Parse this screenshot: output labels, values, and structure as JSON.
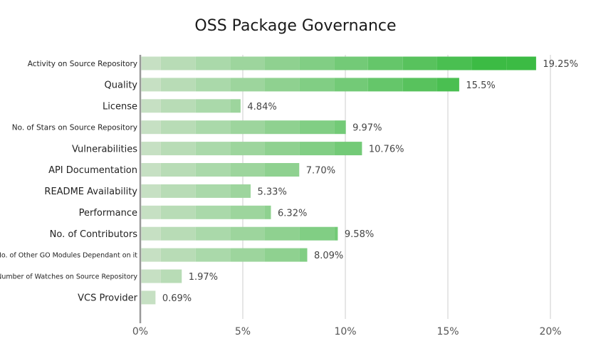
{
  "chart_data": {
    "type": "bar",
    "orientation": "horizontal",
    "title": "OSS Package Governance",
    "xlabel": "",
    "ylabel": "",
    "xlim": [
      0,
      20
    ],
    "x_ticks": [
      "0%",
      "5%",
      "10%",
      "15%",
      "20%"
    ],
    "x_tick_values": [
      0,
      5,
      10,
      15,
      20
    ],
    "grid": "vertical",
    "legend": "none",
    "categories": [
      "Activity on Source Repository",
      "Quality",
      "License",
      "No. of Stars on Source Repository",
      "Vulnerabilities",
      "API Documentation",
      "README Availability",
      "Performance",
      "No. of Contributors",
      "No. of Other GO Modules Dependant on it",
      "Number of Watches on Source Repository",
      "VCS Provider"
    ],
    "values": [
      19.25,
      15.5,
      4.84,
      9.97,
      10.76,
      7.7,
      5.33,
      6.32,
      9.58,
      8.09,
      1.97,
      0.69
    ],
    "data_labels": [
      "19.25%",
      "15.5%",
      "4.84%",
      "9.97%",
      "10.76%",
      "7.70%",
      "5.33%",
      "6.32%",
      "9.58%",
      "8.09%",
      "1.97%",
      "0.69%"
    ],
    "colors": {
      "gradient_start": "#c6e0c3",
      "gradient_end": "#3cbb44",
      "axis": "#999999",
      "grid": "#dddddd"
    }
  }
}
